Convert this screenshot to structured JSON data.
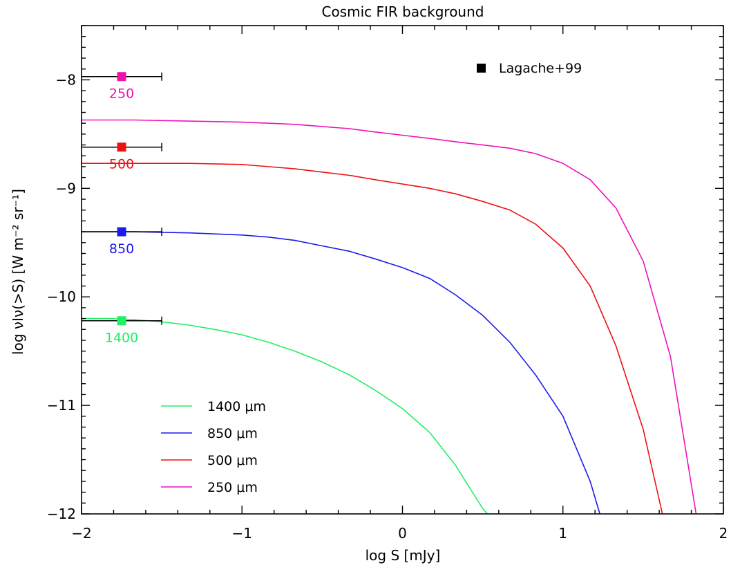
{
  "chart_data": {
    "type": "line",
    "title": "Cosmic FIR background",
    "xlabel": "log S [mJy]",
    "ylabel": "log νIν(>S) [W m⁻² sr⁻¹]",
    "xlim": [
      -2,
      2
    ],
    "ylim": [
      -12,
      -7.5
    ],
    "x_ticks": [
      -2,
      -1,
      0,
      1,
      2
    ],
    "x_tick_labels": [
      "−2",
      "−1",
      "0",
      "1",
      "2"
    ],
    "y_ticks": [
      -12,
      -11,
      -10,
      -9,
      -8
    ],
    "y_tick_labels": [
      "−12",
      "−11",
      "−10",
      "−9",
      "−8"
    ],
    "grid": false,
    "legend_position": "bottom-left",
    "series": [
      {
        "name": "1400 μm",
        "color": "#22ee66",
        "x": [
          -2.0,
          -1.83,
          -1.67,
          -1.5,
          -1.33,
          -1.17,
          -1.0,
          -0.83,
          -0.67,
          -0.5,
          -0.33,
          -0.17,
          0.0,
          0.17,
          0.33,
          0.5,
          0.53
        ],
        "y": [
          -10.2,
          -10.2,
          -10.21,
          -10.23,
          -10.26,
          -10.3,
          -10.35,
          -10.42,
          -10.5,
          -10.6,
          -10.72,
          -10.86,
          -11.03,
          -11.25,
          -11.55,
          -11.95,
          -12.0
        ]
      },
      {
        "name": "850 μm",
        "color": "#1a1aee",
        "x": [
          -2.0,
          -1.67,
          -1.33,
          -1.0,
          -0.83,
          -0.67,
          -0.5,
          -0.33,
          -0.17,
          0.0,
          0.17,
          0.33,
          0.5,
          0.67,
          0.83,
          1.0,
          1.17,
          1.23
        ],
        "y": [
          -9.4,
          -9.4,
          -9.41,
          -9.43,
          -9.45,
          -9.48,
          -9.53,
          -9.58,
          -9.65,
          -9.73,
          -9.83,
          -9.98,
          -10.17,
          -10.42,
          -10.72,
          -11.1,
          -11.7,
          -12.0
        ]
      },
      {
        "name": "500 μm",
        "color": "#ee1111",
        "x": [
          -2.0,
          -1.67,
          -1.33,
          -1.0,
          -0.83,
          -0.67,
          -0.5,
          -0.33,
          -0.17,
          0.0,
          0.17,
          0.33,
          0.5,
          0.67,
          0.83,
          1.0,
          1.17,
          1.33,
          1.5,
          1.62
        ],
        "y": [
          -8.77,
          -8.77,
          -8.77,
          -8.78,
          -8.8,
          -8.82,
          -8.85,
          -8.88,
          -8.92,
          -8.96,
          -9.0,
          -9.05,
          -9.12,
          -9.2,
          -9.33,
          -9.55,
          -9.9,
          -10.45,
          -11.22,
          -12.0
        ]
      },
      {
        "name": "250 μm",
        "color": "#ee11bb",
        "x": [
          -2.0,
          -1.67,
          -1.33,
          -1.0,
          -0.83,
          -0.67,
          -0.5,
          -0.33,
          -0.17,
          0.0,
          0.17,
          0.33,
          0.5,
          0.67,
          0.83,
          1.0,
          1.17,
          1.33,
          1.5,
          1.67,
          1.83
        ],
        "y": [
          -8.37,
          -8.37,
          -8.38,
          -8.39,
          -8.4,
          -8.41,
          -8.43,
          -8.45,
          -8.48,
          -8.51,
          -8.54,
          -8.57,
          -8.6,
          -8.63,
          -8.68,
          -8.77,
          -8.92,
          -9.18,
          -9.67,
          -10.55,
          -12.0
        ]
      }
    ],
    "data_points": [
      {
        "label": "250",
        "color": "#ee11aa",
        "x": -1.75,
        "y": -7.97,
        "xerr_high": -1.5
      },
      {
        "label": "500",
        "color": "#ee1111",
        "x": -1.75,
        "y": -8.62,
        "xerr_high": -1.5
      },
      {
        "label": "850",
        "color": "#1a1aee",
        "x": -1.75,
        "y": -9.4,
        "xerr_high": -1.5
      },
      {
        "label": "1400",
        "color": "#22ee66",
        "x": -1.75,
        "y": -10.22,
        "xerr_high": -1.5
      }
    ],
    "marker_legend": {
      "label": "Lagache+99",
      "color": "#000000"
    }
  }
}
